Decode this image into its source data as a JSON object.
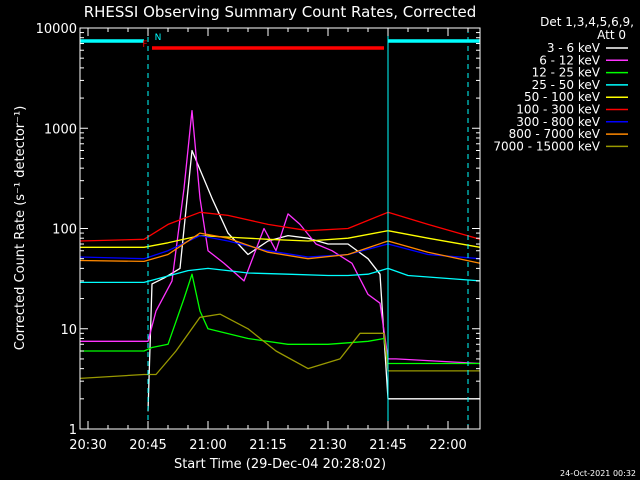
{
  "chart_data": {
    "type": "line",
    "title": "RHESSI Observing Summary Count Rates, Corrected",
    "xlabel": "Start Time (29-Dec-04 20:28:02)",
    "ylabel": "Corrected Count Rate (s⁻¹ detector⁻¹)",
    "y_scale": "log",
    "ylim": [
      1,
      10000
    ],
    "xlim": [
      "20:28",
      "22:08"
    ],
    "x_ticks": [
      "20:30",
      "20:45",
      "21:00",
      "21:15",
      "21:30",
      "21:45",
      "22:00"
    ],
    "y_ticks": [
      "1",
      "10",
      "100",
      "1000",
      "10000"
    ],
    "legend_title": [
      "Det 1,3,4,5,6,9,",
      "Att 0"
    ],
    "legend_position": "top-right, outside plot",
    "series": [
      {
        "name": "3 - 6 keV",
        "color": "#ffffff",
        "x": [
          "20:28",
          "20:40",
          "20:44",
          "20:45",
          "20:46",
          "20:49",
          "20:53",
          "20:56",
          "21:01",
          "21:05",
          "21:10",
          "21:15",
          "21:20",
          "21:25",
          "21:30",
          "21:35",
          "21:40",
          "21:43",
          "21:45",
          "21:47",
          "22:08"
        ],
        "y": [
          0,
          0,
          0,
          1.5,
          28,
          32,
          40,
          600,
          200,
          90,
          55,
          75,
          85,
          80,
          70,
          70,
          50,
          35,
          2,
          2,
          2
        ]
      },
      {
        "name": "6 - 12 keV",
        "color": "#ff33ff",
        "x": [
          "20:28",
          "20:44",
          "20:45",
          "20:47",
          "20:51",
          "20:54",
          "20:56",
          "20:58",
          "21:00",
          "21:04",
          "21:09",
          "21:14",
          "21:17",
          "21:20",
          "21:23",
          "21:27",
          "21:31",
          "21:36",
          "21:40",
          "21:43",
          "21:45",
          "21:47",
          "22:08"
        ],
        "y": [
          7.5,
          7.5,
          7.5,
          15,
          30,
          250,
          1500,
          200,
          60,
          45,
          30,
          100,
          60,
          140,
          110,
          70,
          60,
          45,
          22,
          18,
          5,
          5,
          4.5
        ]
      },
      {
        "name": "12 - 25 keV",
        "color": "#00ff00",
        "x": [
          "20:28",
          "20:44",
          "20:46",
          "20:50",
          "20:54",
          "20:56",
          "20:58",
          "21:00",
          "21:10",
          "21:20",
          "21:30",
          "21:40",
          "21:44",
          "21:45",
          "22:08"
        ],
        "y": [
          6,
          6,
          6.5,
          7,
          20,
          35,
          15,
          10,
          8,
          7,
          7,
          7.5,
          8,
          4.5,
          4.5
        ]
      },
      {
        "name": "25 - 50 keV",
        "color": "#00ffff",
        "x": [
          "20:28",
          "20:44",
          "20:48",
          "20:55",
          "21:00",
          "21:05",
          "21:10",
          "21:20",
          "21:30",
          "21:35",
          "21:40",
          "21:45",
          "21:50",
          "22:08"
        ],
        "y": [
          29,
          29,
          32,
          38,
          40,
          38,
          36,
          35,
          34,
          34,
          35,
          40,
          34,
          30
        ]
      },
      {
        "name": "50 - 100 keV",
        "color": "#ffff00",
        "x": [
          "20:28",
          "20:44",
          "20:50",
          "20:58",
          "21:05",
          "21:15",
          "21:25",
          "21:35",
          "21:45",
          "21:55",
          "22:08"
        ],
        "y": [
          65,
          65,
          72,
          85,
          82,
          78,
          75,
          80,
          95,
          80,
          65
        ]
      },
      {
        "name": "100 - 300 keV",
        "color": "#ff0000",
        "x": [
          "20:28",
          "20:44",
          "20:50",
          "20:58",
          "21:05",
          "21:15",
          "21:25",
          "21:35",
          "21:45",
          "21:55",
          "22:08"
        ],
        "y": [
          75,
          78,
          110,
          145,
          135,
          110,
          95,
          100,
          145,
          110,
          78
        ]
      },
      {
        "name": "300 - 800 keV",
        "color": "#0000ff",
        "x": [
          "20:28",
          "20:44",
          "20:50",
          "20:58",
          "21:05",
          "21:15",
          "21:25",
          "21:35",
          "21:45",
          "21:55",
          "22:08"
        ],
        "y": [
          52,
          50,
          60,
          85,
          75,
          60,
          52,
          55,
          70,
          55,
          50
        ]
      },
      {
        "name": "800 - 7000 keV",
        "color": "#ff8800",
        "x": [
          "20:28",
          "20:44",
          "20:50",
          "20:58",
          "21:05",
          "21:15",
          "21:25",
          "21:35",
          "21:45",
          "21:55",
          "22:08"
        ],
        "y": [
          48,
          47,
          55,
          90,
          80,
          58,
          50,
          55,
          75,
          58,
          45
        ]
      },
      {
        "name": "7000 - 15000 keV",
        "color": "#999900",
        "x": [
          "20:28",
          "20:44",
          "20:47",
          "20:52",
          "20:58",
          "21:03",
          "21:10",
          "21:17",
          "21:25",
          "21:33",
          "21:38",
          "21:44",
          "21:45",
          "22:08"
        ],
        "y": [
          3.2,
          3.5,
          3.5,
          6,
          13,
          14,
          10,
          6,
          4,
          5,
          9,
          9,
          3.8,
          3.8
        ]
      }
    ],
    "state_bars": [
      {
        "label": "N",
        "color": "#00ffff",
        "segments": [
          [
            "20:28",
            "20:44"
          ],
          [
            "21:45",
            "22:08"
          ]
        ]
      },
      {
        "label": "F",
        "color": "#ff0000",
        "segments": [
          [
            "20:46",
            "21:44"
          ]
        ]
      }
    ],
    "vertical_markers": [
      {
        "x": "20:45",
        "style": "dashed",
        "color": "#00ffff"
      },
      {
        "x": "21:45",
        "style": "solid",
        "color": "#00ffff"
      },
      {
        "x": "22:05",
        "style": "dashed",
        "color": "#00ffff"
      }
    ],
    "timestamp": "24-Oct-2021 00:32"
  }
}
